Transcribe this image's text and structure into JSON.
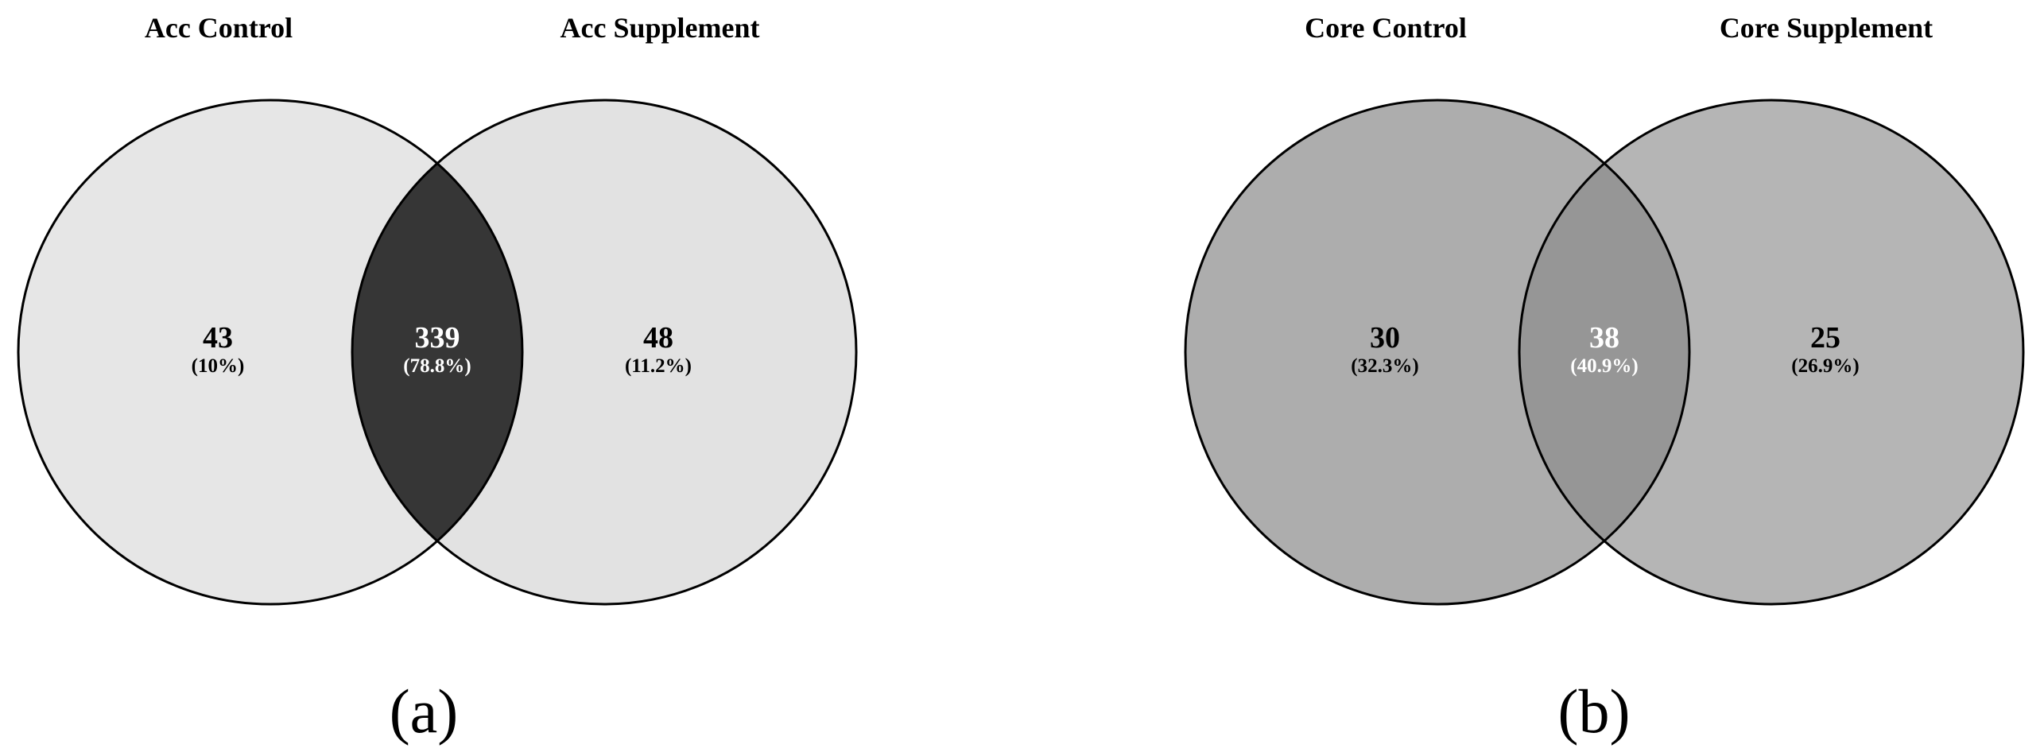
{
  "panels": [
    {
      "label": "(a)",
      "left_title": "Acc Control",
      "right_title": "Acc Supplement",
      "left_only": {
        "count": "43",
        "pct": "(10%)"
      },
      "overlap": {
        "count": "339",
        "pct": "(78.8%)"
      },
      "right_only": {
        "count": "48",
        "pct": "(11.2%)"
      },
      "colors": {
        "left_fill": "#e6e6e6",
        "right_fill": "#e2e2e2",
        "overlap_fill": "#363636",
        "side_text": "#000000",
        "overlap_text": "#ffffff"
      }
    },
    {
      "label": "(b)",
      "left_title": "Core Control",
      "right_title": "Core Supplement",
      "left_only": {
        "count": "30",
        "pct": "(32.3%)"
      },
      "overlap": {
        "count": "38",
        "pct": "(40.9%)"
      },
      "right_only": {
        "count": "25",
        "pct": "(26.9%)"
      },
      "colors": {
        "left_fill": "#adadad",
        "right_fill": "#b5b5b5",
        "overlap_fill": "#969696",
        "side_text": "#000000",
        "overlap_text": "#ffffff"
      }
    }
  ]
}
